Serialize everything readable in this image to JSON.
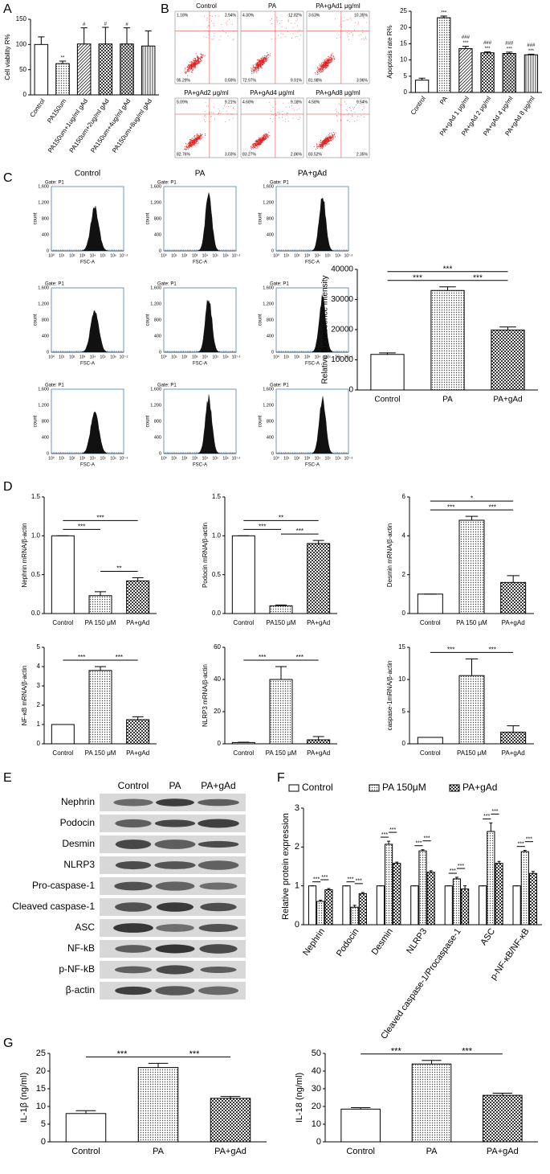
{
  "panel_labels": [
    "A",
    "B",
    "C",
    "D",
    "E",
    "F",
    "G"
  ],
  "flow_cytometry": {
    "plots": [
      {
        "title": "Control",
        "quadrants": [
          "1.18%",
          "2.94%",
          "95.29%",
          "0.59%"
        ]
      },
      {
        "title": "PA",
        "quadrants": [
          "4.30%",
          "12.82%",
          "72.97%",
          "9.91%"
        ]
      },
      {
        "title": "PA+gAd1 μg/ml",
        "quadrants": [
          "3.63%",
          "10.35%",
          "81.98%",
          "3.96%"
        ]
      },
      {
        "title": "PA+gAd2 μg/ml",
        "quadrants": [
          "5.09%",
          "9.21%",
          "82.76%",
          "3.03%"
        ]
      },
      {
        "title": "PA+gAd4 μg/ml",
        "quadrants": [
          "4.68%",
          "9.18%",
          "83.27%",
          "2.86%"
        ]
      },
      {
        "title": "PA+gAd8 μg/ml",
        "quadrants": [
          "4.58%",
          "9.54%",
          "83.52%",
          "2.35%"
        ]
      }
    ]
  },
  "histograms": {
    "titles": [
      "Control",
      "PA",
      "PA+gAd"
    ],
    "gate": "Gate: P1",
    "y_label": "count",
    "x_label": "FSC-A",
    "y_ticks": [
      "0",
      "400",
      "800",
      "1,200",
      "1,600"
    ],
    "x_ticks": [
      "10⁰",
      "10¹",
      "10²",
      "10³",
      "10⁴",
      "10⁵",
      "10⁶",
      "10⁷·²"
    ]
  },
  "western_blot": {
    "columns": [
      "Control",
      "PA",
      "PA+gAd"
    ],
    "rows": [
      "Nephrin",
      "Podocin",
      "Desmin",
      "NLRP3",
      "Pro-caspase-1",
      "Cleaved caspase-1",
      "ASC",
      "NF-kB",
      "p-NF-kB",
      "β-actin"
    ]
  },
  "chart_data": [
    {
      "type": "bar",
      "y_label": "Cell viability R%",
      "categories": [
        "Control",
        "PA150um",
        "PA150um+1ug/ml gAd",
        "PA150um+2ug/ml gAd",
        "PA150um+4ug/ml gAd",
        "PA150um+8ug/ml gAd"
      ],
      "values": [
        100,
        62,
        101,
        101,
        101,
        97
      ],
      "errors": [
        15,
        5,
        32,
        33,
        32,
        30
      ],
      "ylim": [
        0,
        150
      ],
      "yticks": [
        0,
        50,
        100,
        150
      ],
      "patterns": [
        "white",
        "dots",
        "hatch",
        "checks",
        "crosshatch",
        "vlines"
      ],
      "annotations": [
        [],
        [
          "**"
        ],
        [
          "#"
        ],
        [
          "#"
        ],
        [
          "#"
        ],
        []
      ]
    },
    {
      "type": "bar",
      "y_label": "Apoptosis rate R%",
      "categories": [
        "Control",
        "PA",
        "PA+gAd 1 μg/ml",
        "PA+gAd 2 μg/ml",
        "PA+gAd 4 μg/ml",
        "PA+gAd 8 μg/ml"
      ],
      "values": [
        3.8,
        23,
        13.5,
        12.2,
        12,
        11.6
      ],
      "errors": [
        0.6,
        0.5,
        0.7,
        0.3,
        0.4,
        0.2
      ],
      "ylim": [
        0,
        25
      ],
      "yticks": [
        0,
        5,
        10,
        15,
        20,
        25
      ],
      "patterns": [
        "white",
        "dots",
        "hatch",
        "checks",
        "crosshatch",
        "vlines"
      ],
      "annotations": [
        [],
        [
          "***"
        ],
        [
          "###",
          "***"
        ],
        [
          "###",
          "***"
        ],
        [
          "###",
          "***"
        ],
        [
          "###",
          "***"
        ]
      ]
    },
    {
      "type": "bar",
      "y_label": "Relative fluorescence intensity",
      "categories": [
        "Control",
        "PA",
        "PA+gAd"
      ],
      "values": [
        11800,
        33000,
        19900
      ],
      "errors": [
        500,
        1200,
        1000
      ],
      "ylim": [
        0,
        40000
      ],
      "yticks": [
        0,
        10000,
        20000,
        30000,
        40000
      ],
      "patterns": [
        "white",
        "dots",
        "checks"
      ],
      "comparisons": [
        {
          "label": "***",
          "between": [
            "Control",
            "PA"
          ]
        },
        {
          "label": "***",
          "between": [
            "Control",
            "PA+gAd"
          ]
        },
        {
          "label": "***",
          "between": [
            "PA",
            "PA+gAd"
          ]
        }
      ]
    },
    {
      "type": "bar",
      "y_label": "Nephrin mRNA/β-actin",
      "categories": [
        "Control",
        "PA 150 μM",
        "PA+gAd"
      ],
      "values": [
        1,
        0.23,
        0.42
      ],
      "errors": [
        0,
        0.05,
        0.04
      ],
      "ylim": [
        0,
        1.5
      ],
      "yticks": [
        {
          "value": 0,
          "label": "0.0"
        },
        {
          "value": 0.5,
          "label": "0.5"
        },
        {
          "value": 1,
          "label": "1.0"
        },
        {
          "value": 1.5,
          "label": "1.5"
        }
      ],
      "patterns": [
        "white",
        "dots",
        "checks"
      ],
      "comparisons": [
        {
          "label": "***",
          "between": [
            "Control",
            "PA 150 μM"
          ]
        },
        {
          "label": "***",
          "between": [
            "Control",
            "PA+gAd"
          ]
        },
        {
          "label": "**",
          "between": [
            "PA 150 μM",
            "PA+gAd"
          ]
        }
      ]
    },
    {
      "type": "bar",
      "y_label": "Podocin mRNA/β-actin",
      "categories": [
        "Control",
        "PA150 μM",
        "PA+gAd"
      ],
      "values": [
        1,
        0.1,
        0.9
      ],
      "errors": [
        0,
        0.01,
        0.04
      ],
      "ylim": [
        0,
        1.5
      ],
      "yticks": [
        {
          "value": 0,
          "label": "0.0"
        },
        {
          "value": 0.5,
          "label": "0.5"
        },
        {
          "value": 1,
          "label": "1.0"
        },
        {
          "value": 1.5,
          "label": "1.5"
        }
      ],
      "patterns": [
        "white",
        "dots",
        "checks"
      ],
      "comparisons": [
        {
          "label": "***",
          "between": [
            "Control",
            "PA150 μM"
          ]
        },
        {
          "label": "**",
          "between": [
            "Control",
            "PA+gAd"
          ]
        },
        {
          "label": "***",
          "between": [
            "PA150 μM",
            "PA+gAd"
          ]
        }
      ]
    },
    {
      "type": "bar",
      "y_label": "Desmin mRNA/β-actin",
      "categories": [
        "Control",
        "PA 150 μM",
        "PA+gAd"
      ],
      "values": [
        1,
        4.8,
        1.6
      ],
      "errors": [
        0,
        0.2,
        0.35
      ],
      "ylim": [
        0,
        6
      ],
      "yticks": [
        0,
        2,
        4,
        6
      ],
      "patterns": [
        "white",
        "dots",
        "checks"
      ],
      "comparisons": [
        {
          "label": "***",
          "between": [
            "Control",
            "PA 150 μM"
          ]
        },
        {
          "label": "*",
          "between": [
            "Control",
            "PA+gAd"
          ]
        },
        {
          "label": "***",
          "between": [
            "PA 150 μM",
            "PA+gAd"
          ]
        }
      ]
    },
    {
      "type": "bar",
      "y_label": "NF-κB mRNA/β-actin",
      "categories": [
        "Control",
        "PA 150 μM",
        "PA+gAd"
      ],
      "values": [
        1,
        3.8,
        1.25
      ],
      "errors": [
        0,
        0.2,
        0.15
      ],
      "ylim": [
        0,
        5
      ],
      "yticks": [
        0,
        1,
        2,
        3,
        4,
        5
      ],
      "patterns": [
        "white",
        "dots",
        "checks"
      ],
      "comparisons": [
        {
          "label": "***",
          "between": [
            "Control",
            "PA 150 μM"
          ]
        },
        {
          "label": "***",
          "between": [
            "PA 150 μM",
            "PA+gAd"
          ]
        }
      ]
    },
    {
      "type": "bar",
      "y_label": "NLRP3 mRNA/β-actin",
      "categories": [
        "Control",
        "PA 150 μM",
        "PA+gAd"
      ],
      "values": [
        0.8,
        40,
        2.5
      ],
      "errors": [
        0.2,
        8,
        2
      ],
      "ylim": [
        0,
        60
      ],
      "yticks": [
        0,
        20,
        40,
        60
      ],
      "patterns": [
        "white",
        "dots",
        "checks"
      ],
      "comparisons": [
        {
          "label": "***",
          "between": [
            "Control",
            "PA 150 μM"
          ]
        },
        {
          "label": "***",
          "between": [
            "PA 150 μM",
            "PA+gAd"
          ]
        }
      ]
    },
    {
      "type": "bar",
      "y_label": "caspase-1mRNA/β-actin",
      "categories": [
        "Control",
        "PA150 μM",
        "PA+gAd"
      ],
      "values": [
        1,
        10.6,
        1.8
      ],
      "errors": [
        0,
        2.6,
        1
      ],
      "ylim": [
        0,
        15
      ],
      "yticks": [
        0,
        5,
        10,
        15
      ],
      "patterns": [
        "white",
        "dots",
        "checks"
      ],
      "comparisons": [
        {
          "label": "***",
          "between": [
            "Control",
            "PA150 μM"
          ]
        },
        {
          "label": "***",
          "between": [
            "PA150 μM",
            "PA+gAd"
          ]
        }
      ]
    },
    {
      "type": "bar",
      "y_label": "Relative protein expression",
      "categories": [
        "Nephrin",
        "Podocin",
        "Desmin",
        "NLRP3",
        "Cleaved caspase-1/Procaspase-1",
        "ASC",
        "p-NF-κB/NF-κB"
      ],
      "ylim": [
        0,
        3
      ],
      "yticks": [
        0,
        1,
        2,
        3
      ],
      "series": [
        {
          "name": "Control",
          "pattern": "white",
          "values": [
            1,
            1,
            1,
            1,
            1,
            1,
            1
          ],
          "errors": [
            0,
            0,
            0,
            0,
            0,
            0,
            0
          ]
        },
        {
          "name": "PA 150μM",
          "pattern": "dots",
          "values": [
            0.6,
            0.45,
            2.07,
            1.9,
            1.18,
            2.4,
            1.88
          ],
          "errors": [
            0.03,
            0.05,
            0.08,
            0.03,
            0.04,
            0.22,
            0.03
          ]
        },
        {
          "name": "PA+gAd",
          "pattern": "checks",
          "values": [
            0.9,
            0.8,
            1.58,
            1.35,
            0.92,
            1.58,
            1.32
          ],
          "errors": [
            0.03,
            0.03,
            0.03,
            0.04,
            0.08,
            0.05,
            0.05
          ]
        }
      ],
      "comparisons": [
        {
          "label": "***",
          "category": "Nephrin",
          "between": [
            "Control",
            "PA 150μM"
          ]
        },
        {
          "label": "***",
          "category": "Nephrin",
          "between": [
            "PA 150μM",
            "PA+gAd"
          ]
        },
        {
          "label": "***",
          "category": "Podocin",
          "between": [
            "Control",
            "PA 150μM"
          ]
        },
        {
          "label": "***",
          "category": "Podocin",
          "between": [
            "PA 150μM",
            "PA+gAd"
          ]
        },
        {
          "label": "***",
          "category": "Desmin",
          "between": [
            "Control",
            "PA 150μM"
          ]
        },
        {
          "label": "***",
          "category": "Desmin",
          "between": [
            "PA 150μM",
            "PA+gAd"
          ]
        },
        {
          "label": "***",
          "category": "NLRP3",
          "between": [
            "Control",
            "PA 150μM"
          ]
        },
        {
          "label": "***",
          "category": "NLRP3",
          "between": [
            "PA 150μM",
            "PA+gAd"
          ]
        },
        {
          "label": "***",
          "category": "Cleaved caspase-1/Procaspase-1",
          "between": [
            "Control",
            "PA 150μM"
          ]
        },
        {
          "label": "***",
          "category": "Cleaved caspase-1/Procaspase-1",
          "between": [
            "PA 150μM",
            "PA+gAd"
          ]
        },
        {
          "label": "***",
          "category": "ASC",
          "between": [
            "Control",
            "PA 150μM"
          ]
        },
        {
          "label": "***",
          "category": "ASC",
          "between": [
            "PA 150μM",
            "PA+gAd"
          ]
        },
        {
          "label": "***",
          "category": "p-NF-κB/NF-κB",
          "between": [
            "Control",
            "PA 150μM"
          ]
        },
        {
          "label": "***",
          "category": "p-NF-κB/NF-κB",
          "between": [
            "PA 150μM",
            "PA+gAd"
          ]
        }
      ]
    },
    {
      "type": "bar",
      "y_label": "IL-1β (ng/ml)",
      "categories": [
        "Control",
        "PA",
        "PA+gAd"
      ],
      "values": [
        8,
        21,
        12.3
      ],
      "errors": [
        0.8,
        1.2,
        0.5
      ],
      "ylim": [
        0,
        25
      ],
      "yticks": [
        0,
        5,
        10,
        15,
        20,
        25
      ],
      "patterns": [
        "white",
        "dots",
        "checks"
      ],
      "comparisons": [
        {
          "label": "***",
          "between": [
            "Control",
            "PA"
          ]
        },
        {
          "label": "***",
          "between": [
            "PA",
            "PA+gAd"
          ]
        }
      ]
    },
    {
      "type": "bar",
      "y_label": "IL-18 (ng/ml)",
      "categories": [
        "Control",
        "PA",
        "PA+gAd"
      ],
      "values": [
        18.5,
        44,
        26.3
      ],
      "errors": [
        0.8,
        2,
        1.2
      ],
      "ylim": [
        0,
        50
      ],
      "yticks": [
        0,
        10,
        20,
        30,
        40,
        50
      ],
      "patterns": [
        "white",
        "dots",
        "checks"
      ],
      "comparisons": [
        {
          "label": "***",
          "between": [
            "Control",
            "PA"
          ]
        },
        {
          "label": "***",
          "between": [
            "PA",
            "PA+gAd"
          ]
        }
      ]
    }
  ]
}
